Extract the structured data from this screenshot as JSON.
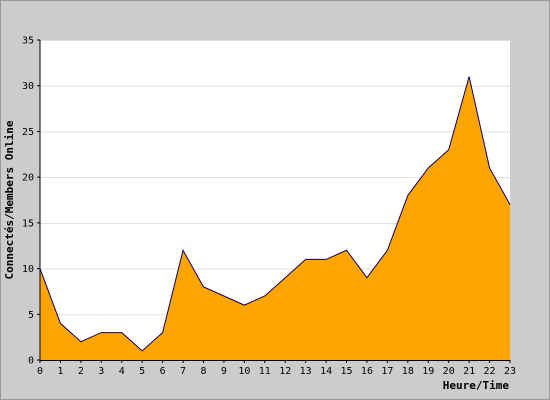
{
  "chart_data": {
    "type": "area",
    "x": [
      0,
      1,
      2,
      3,
      4,
      5,
      6,
      7,
      8,
      9,
      10,
      11,
      12,
      13,
      14,
      15,
      16,
      17,
      18,
      19,
      20,
      21,
      22,
      23
    ],
    "series": [
      {
        "values": [
          10,
          4,
          2,
          3,
          3,
          1,
          3,
          12,
          8,
          7,
          6,
          7,
          9,
          11,
          11,
          12,
          9,
          12,
          18,
          21,
          23,
          31,
          21,
          17
        ]
      }
    ],
    "xlabel": "Heure/Time",
    "ylabel": "Connectés/Members Online",
    "xlim": [
      0,
      23
    ],
    "ylim": [
      0,
      35
    ],
    "y_ticks": [
      0,
      5,
      10,
      15,
      20,
      25,
      30,
      35
    ],
    "grid": "horizontal",
    "colors": {
      "frame": "#cccccc",
      "plot_background": "#ffffff",
      "fill": "#ffa500",
      "line": "#000080",
      "grid": "#dddddd"
    }
  }
}
